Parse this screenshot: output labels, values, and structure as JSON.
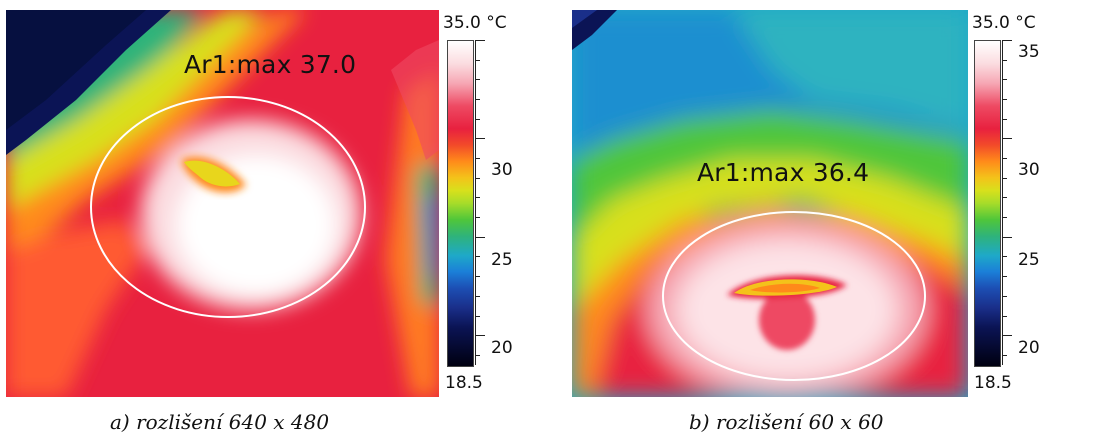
{
  "panel_a": {
    "max_label": "Ar1:max 37.0",
    "scale_top": "35.0 °C",
    "scale_bottom": "18.5",
    "ticks": [
      "30",
      "25",
      "20"
    ],
    "caption": "a) rozlišení 640 x 480"
  },
  "panel_b": {
    "max_label": "Ar1:max 36.4",
    "scale_top": "35.0 °C",
    "scale_bottom": "18.5",
    "ticks": [
      "35",
      "30",
      "25",
      "20"
    ],
    "caption": "b) rozlišení 60 x 60"
  },
  "colors": {
    "hot": "#ffffff",
    "warm": "#ee2244",
    "mid": "#f4c21a",
    "cool": "#1e7fd8",
    "cold": "#000022",
    "ellipse": "#ffffff"
  }
}
